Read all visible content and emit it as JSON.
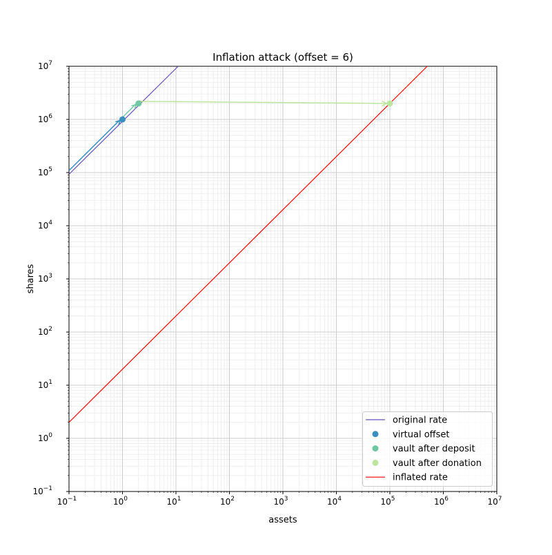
{
  "chart_data": {
    "type": "line",
    "title": "Inflation attack (offset = 6)",
    "xlabel": "assets",
    "ylabel": "shares",
    "xscale": "log",
    "yscale": "log",
    "xlim": [
      0.1,
      10000000
    ],
    "ylim": [
      0.1,
      10000000
    ],
    "x_tick_exponents": [
      -1,
      0,
      1,
      2,
      3,
      4,
      5,
      6,
      7
    ],
    "y_tick_exponents": [
      -1,
      0,
      1,
      2,
      3,
      4,
      5,
      6,
      7
    ],
    "grid": true,
    "legend_position": "lower-right",
    "series": [
      {
        "name": "original rate",
        "kind": "line",
        "color": "#6a51b6",
        "points": [
          [
            0.1,
            93000
          ],
          [
            11,
            10000000
          ]
        ]
      },
      {
        "name": "virtual offset",
        "kind": "point",
        "color": "#3a8fc0",
        "points": [
          [
            1,
            1000000
          ]
        ]
      },
      {
        "name": "vault after deposit",
        "kind": "point",
        "color": "#6fc7a4",
        "points": [
          [
            2,
            2000000
          ]
        ]
      },
      {
        "name": "vault after donation",
        "kind": "point",
        "color": "#bde5a0",
        "points": [
          [
            100000,
            2000000
          ]
        ]
      },
      {
        "name": "inflated rate",
        "kind": "line",
        "color": "#ff0000",
        "points": [
          [
            0.1,
            2
          ],
          [
            500000,
            10000000
          ]
        ]
      }
    ],
    "arrows": [
      {
        "from": [
          0.1,
          100000
        ],
        "to": [
          1,
          1000000
        ],
        "color": "#3a8fc0"
      },
      {
        "from": [
          1,
          1000000
        ],
        "to": [
          2,
          2000000
        ],
        "color": "#6fc7a4"
      },
      {
        "from": [
          2,
          2000000
        ],
        "to": [
          100000,
          2000000
        ],
        "color": "#bde5a0"
      }
    ]
  }
}
